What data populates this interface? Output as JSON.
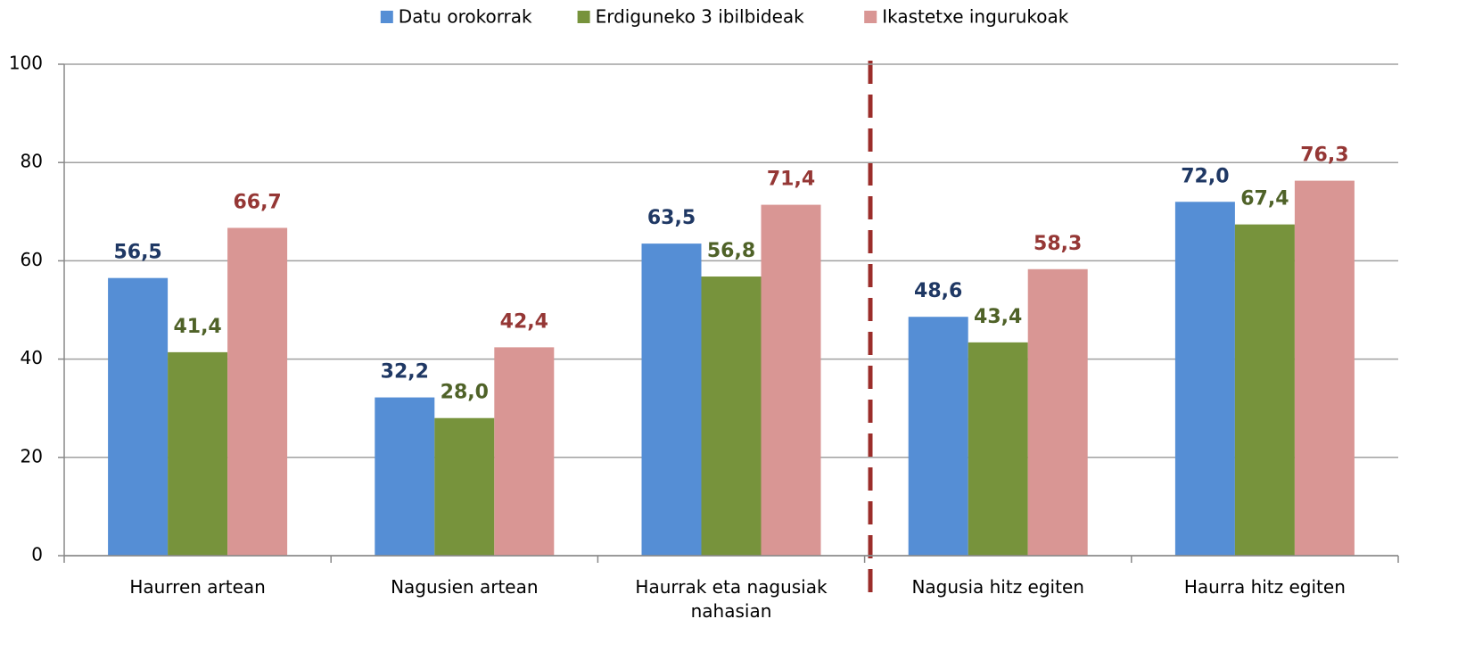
{
  "chart_data": {
    "type": "bar",
    "categories": [
      "Haurren artean",
      "Nagusien artean",
      "Haurrak eta nagusiak nahasian",
      "Nagusia hitz egiten",
      "Haurra hitz egiten"
    ],
    "series": [
      {
        "name": "Datu orokorrak",
        "color": "#558ed5",
        "label_color": "#1f3864",
        "values": [
          56.5,
          32.2,
          63.5,
          48.6,
          72.0
        ],
        "value_labels": [
          "56,5",
          "32,2",
          "63,5",
          "48,6",
          "72,0"
        ]
      },
      {
        "name": "Erdiguneko 3 ibilbideak",
        "color": "#77933c",
        "label_color": "#4f6228",
        "values": [
          41.4,
          28.0,
          56.8,
          43.4,
          67.4
        ],
        "value_labels": [
          "41,4",
          "28,0",
          "56,8",
          "43,4",
          "67,4"
        ]
      },
      {
        "name": "Ikastetxe ingurukoak",
        "color": "#d99694",
        "label_color": "#953735",
        "values": [
          66.7,
          42.4,
          71.4,
          58.3,
          76.3
        ],
        "value_labels": [
          "66,7",
          "42,4",
          "71,4",
          "58,3",
          "76,3"
        ]
      }
    ],
    "ylim": [
      0,
      100
    ],
    "yticks": [
      0,
      20,
      40,
      60,
      80,
      100
    ],
    "grid": true,
    "legend": "top"
  }
}
